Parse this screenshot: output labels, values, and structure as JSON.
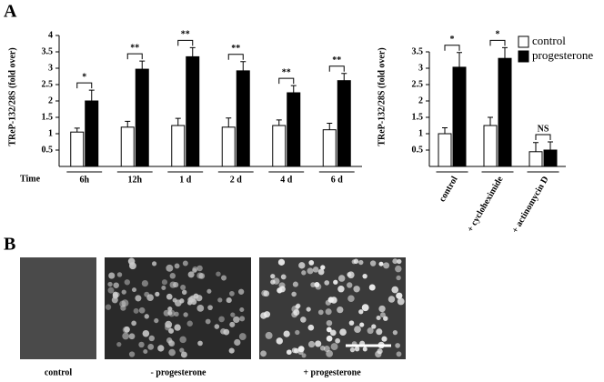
{
  "chart_data": [
    {
      "type": "bar",
      "panel": "A",
      "ylabel": "TReP-132/28S (fold over)",
      "xlabel": "Time",
      "categories": [
        "6h",
        "12h",
        "1 d",
        "2 d",
        "4 d",
        "6 d"
      ],
      "series": [
        {
          "color": "#ffffff",
          "values": [
            1.05,
            1.2,
            1.25,
            1.2,
            1.25,
            1.12
          ],
          "errors": [
            0.12,
            0.18,
            0.22,
            0.28,
            0.17,
            0.2
          ]
        },
        {
          "color": "#000000",
          "values": [
            2.0,
            2.97,
            3.35,
            2.92,
            2.25,
            2.62
          ],
          "errors": [
            0.33,
            0.25,
            0.28,
            0.28,
            0.22,
            0.22
          ]
        }
      ],
      "annotations": [
        "*",
        "**",
        "**",
        "**",
        "**",
        "**"
      ],
      "ylim": [
        0,
        4.25
      ],
      "yticks": [
        0.5,
        1,
        1.5,
        2,
        2.5,
        3,
        3.5,
        4
      ]
    },
    {
      "type": "bar",
      "ylabel": "TReP-132/28S (fold over)",
      "categories": [
        "control",
        "+ cycloheximide",
        "+ actinomycin D"
      ],
      "series": [
        {
          "name": "control",
          "color": "#ffffff",
          "values": [
            1.0,
            1.25,
            0.45
          ],
          "errors": [
            0.18,
            0.25,
            0.28
          ]
        },
        {
          "name": "progesterone",
          "color": "#000000",
          "values": [
            3.03,
            3.3,
            0.5
          ],
          "errors": [
            0.45,
            0.33,
            0.25
          ]
        }
      ],
      "annotations": [
        "*",
        "*",
        "NS"
      ],
      "ylim": [
        0,
        4.25
      ],
      "yticks": [
        0.5,
        1,
        1.5,
        2,
        2.5,
        3,
        3.5
      ],
      "legend": "upper right"
    }
  ],
  "panel_b": {
    "label": "B",
    "captions": [
      "control",
      "- progesterone",
      "+ progesterone"
    ]
  }
}
